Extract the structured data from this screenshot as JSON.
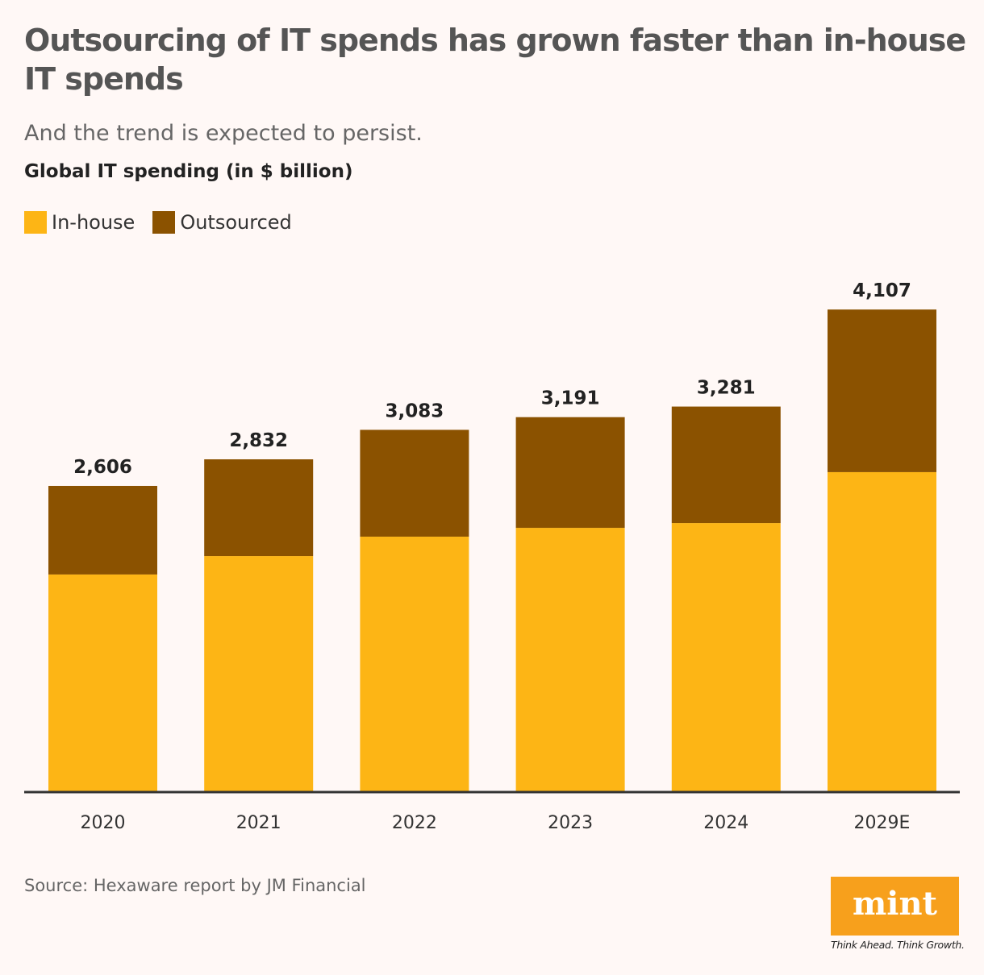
{
  "title": "Outsourcing of IT spends has grown faster than in-house IT spends",
  "subtitle": "And the trend is expected to persist.",
  "source": "Source: Hexaware report by JM Financial",
  "logo": {
    "text": "mint",
    "tagline": "Think Ahead. Think Growth."
  },
  "chart_data": {
    "type": "bar",
    "stacked": true,
    "ylabel": "Global IT spending (in $ billion)",
    "categories": [
      "2020",
      "2021",
      "2022",
      "2023",
      "2024",
      "2029E"
    ],
    "series": [
      {
        "name": "In-house",
        "color": "#fdb515",
        "values": [
          1852,
          2009,
          2174,
          2249,
          2290,
          2723
        ]
      },
      {
        "name": "Outsourced",
        "color": "#8b5200",
        "values": [
          754,
          823,
          909,
          942,
          991,
          1384
        ]
      }
    ],
    "totals": [
      2606,
      2832,
      3083,
      3191,
      3281,
      4107
    ],
    "total_labels": [
      "2,606",
      "2,832",
      "3,083",
      "3,191",
      "3,281",
      "4,107"
    ],
    "ylim": [
      0,
      4500
    ],
    "grid": false,
    "legend": "top-left"
  }
}
